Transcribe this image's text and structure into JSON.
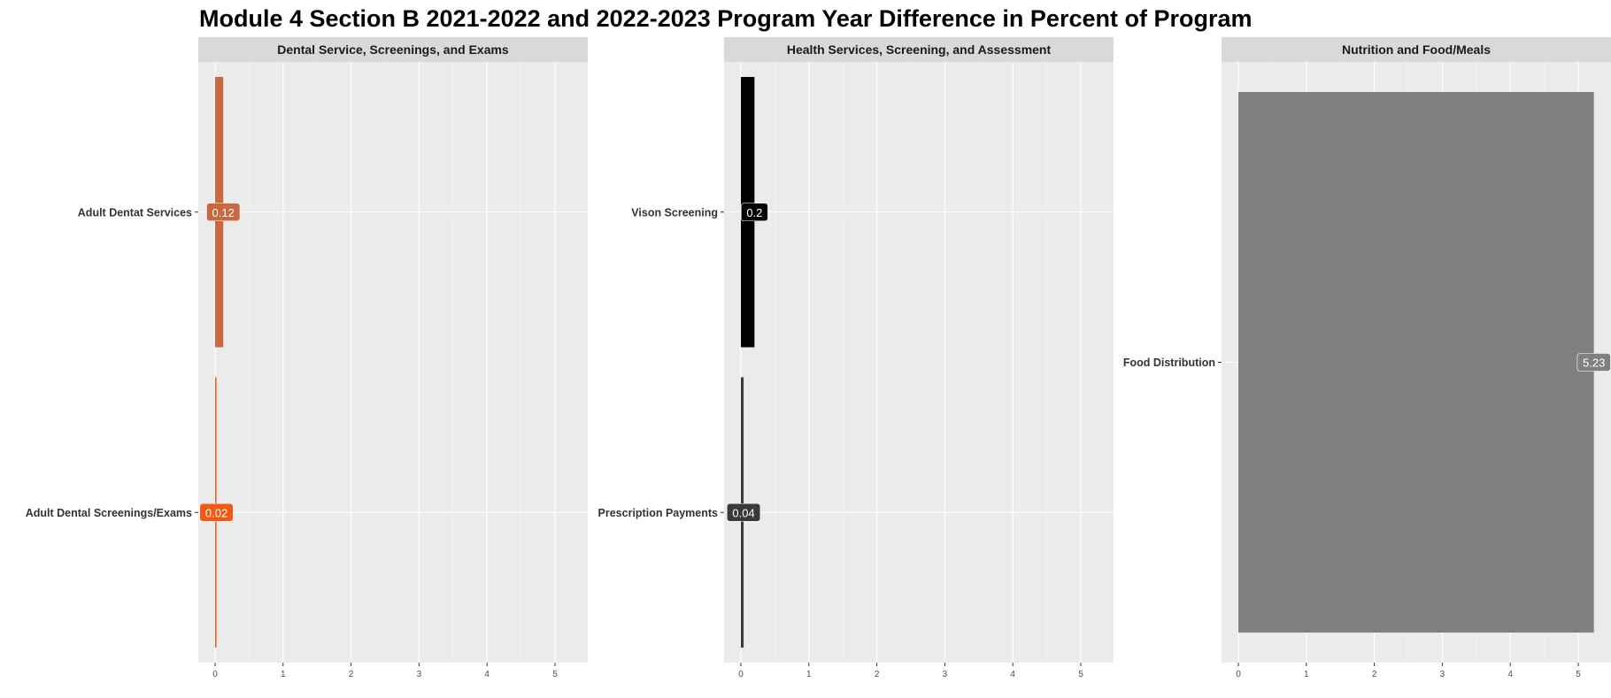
{
  "chart_data": {
    "type": "bar",
    "orientation": "horizontal",
    "title": "Module 4 Section B 2021-2022 and 2022-2023 Program Year Difference in Percent of Program",
    "xlim": [
      0,
      5.5
    ],
    "x_ticks": [
      "0",
      "1",
      "2",
      "3",
      "4",
      "5"
    ],
    "grid": true,
    "panels": [
      {
        "strip": "Dental Service, Screenings, and Exams",
        "categories": [
          "Adult Dentat Services",
          "Adult Dental Screenings/Exams"
        ],
        "values": [
          0.12,
          0.02
        ],
        "labels": [
          "0.12",
          "0.02"
        ],
        "colors": [
          "#c8683f",
          "#f05a12"
        ]
      },
      {
        "strip": "Health Services, Screening, and Assessment",
        "categories": [
          "Vison Screening",
          "Prescription Payments"
        ],
        "values": [
          0.2,
          0.04
        ],
        "labels": [
          "0.2",
          "0.04"
        ],
        "colors": [
          "#000000",
          "#3a3a3a"
        ]
      },
      {
        "strip": "Nutrition and Food/Meals",
        "categories": [
          "Food Distribution"
        ],
        "values": [
          5.23
        ],
        "labels": [
          "5.23"
        ],
        "colors": [
          "#808083"
        ]
      }
    ]
  }
}
